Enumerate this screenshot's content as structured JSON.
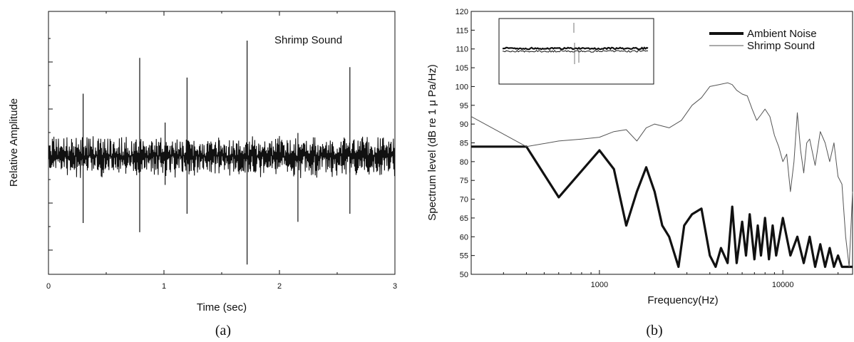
{
  "colors": {
    "ink": "#111111",
    "background": "#ffffff",
    "thin_series": "#555555"
  },
  "chart_data": [
    {
      "type": "line",
      "panel_label": "(a)",
      "annotation": "Shrimp Sound",
      "xlabel": "Time (sec)",
      "ylabel": "Relative Amplitude",
      "xlim": [
        0,
        3
      ],
      "xticks": [
        "0",
        "1",
        "2",
        "3"
      ],
      "ylim": [
        -1,
        1
      ],
      "y_tick_labels_shown": false,
      "grid": false,
      "series": [
        {
          "style": "waveform",
          "noise_amplitude": 0.12,
          "spikes": [
            {
              "x": 0.3,
              "up": 0.54,
              "down": -0.58
            },
            {
              "x": 0.79,
              "up": 0.85,
              "down": -0.66
            },
            {
              "x": 1.01,
              "up": 0.29,
              "down": -0.25
            },
            {
              "x": 1.2,
              "up": 0.68,
              "down": -0.5
            },
            {
              "x": 1.72,
              "up": 1.0,
              "down": -0.94
            },
            {
              "x": 2.16,
              "up": 0.2,
              "down": -0.57
            },
            {
              "x": 2.61,
              "up": 0.77,
              "down": -0.5
            }
          ]
        }
      ]
    },
    {
      "type": "line",
      "panel_label": "(b)",
      "xlabel": "Frequency(Hz)",
      "ylabel": "Spectrum level (dB re 1 μ Pa/Hz)",
      "x_scale": "log",
      "xlim": [
        200,
        24000
      ],
      "x_tick_values": [
        1000,
        10000
      ],
      "x_tick_labels": [
        "1000",
        "10000"
      ],
      "ylim": [
        50,
        120
      ],
      "y_tick_values": [
        50,
        55,
        60,
        65,
        70,
        75,
        80,
        85,
        90,
        95,
        100,
        105,
        110,
        115,
        120
      ],
      "legend_position": "top-right",
      "grid": false,
      "series": [
        {
          "name": "Ambient Noise",
          "line": "thick",
          "x": [
            200,
            400,
            600,
            1000,
            1200,
            1400,
            1600,
            1800,
            2000,
            2200,
            2400,
            2700,
            2900,
            3200,
            3600,
            4000,
            4300,
            4600,
            5000,
            5300,
            5600,
            6000,
            6300,
            6600,
            7000,
            7300,
            7600,
            8000,
            8400,
            8800,
            9200,
            9600,
            10000,
            11000,
            12000,
            13000,
            14000,
            15000,
            16000,
            17000,
            18000,
            19000,
            20000,
            21000,
            22000,
            24000
          ],
          "y": [
            84,
            84,
            70.5,
            83,
            78,
            63,
            72,
            78.5,
            72,
            63,
            60,
            52,
            63,
            66,
            67.5,
            55,
            52,
            57,
            53,
            68,
            53,
            64,
            55,
            66,
            54,
            63,
            55,
            65,
            54,
            63,
            55,
            60,
            65,
            55,
            60,
            53,
            60,
            52,
            58,
            52,
            57,
            52,
            55,
            52,
            52,
            52
          ]
        },
        {
          "name": "Shrimp Sound",
          "line": "thin",
          "x": [
            200,
            400,
            600,
            800,
            1000,
            1200,
            1400,
            1600,
            1800,
            2000,
            2400,
            2800,
            3200,
            3600,
            4000,
            4500,
            5000,
            5300,
            5600,
            6000,
            6400,
            6800,
            7200,
            7600,
            8000,
            8500,
            9000,
            9500,
            10000,
            10500,
            11000,
            11500,
            12000,
            12500,
            13000,
            13500,
            14000,
            15000,
            16000,
            17000,
            18000,
            19000,
            20000,
            21000,
            22000,
            23000,
            24000
          ],
          "y": [
            92,
            84,
            85.5,
            86,
            86.5,
            88,
            88.5,
            85.5,
            89,
            90,
            89,
            91,
            95,
            97,
            100,
            100.5,
            101,
            100.5,
            99,
            98,
            97.5,
            94,
            91,
            92.5,
            94,
            92,
            87,
            84,
            80,
            82,
            72,
            80,
            93,
            83,
            77,
            85,
            86,
            79,
            88,
            85,
            80,
            85,
            76,
            74,
            60,
            52,
            72
          ]
        }
      ],
      "inset": {
        "present": true
      }
    }
  ]
}
